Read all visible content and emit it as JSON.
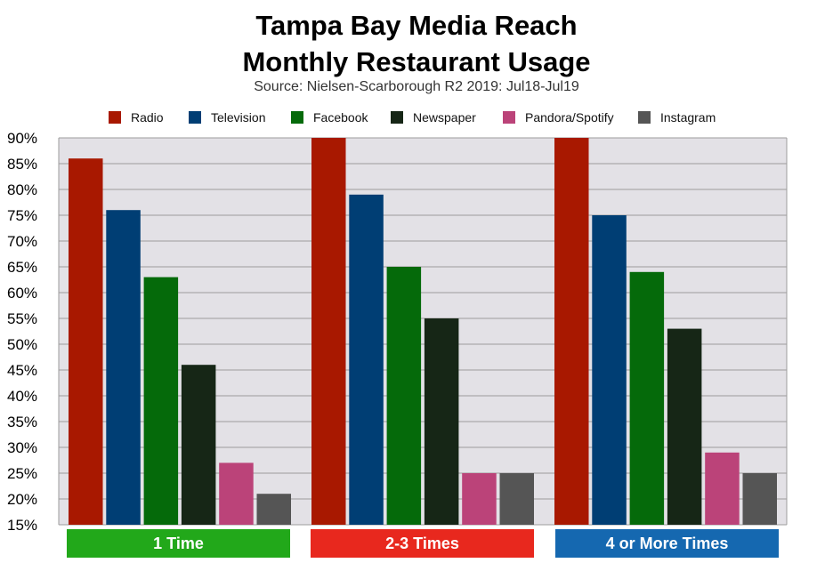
{
  "chart_data": {
    "type": "bar",
    "title_lines": [
      "Tampa Bay Media Reach",
      "Monthly Restaurant Usage"
    ],
    "subtitle": "Source: Nielsen-Scarborough R2 2019: Jul18-Jul19",
    "categories": [
      "1 Time",
      "2-3 Times",
      "4 or More Times"
    ],
    "category_colors": [
      "#22a81a",
      "#e8281e",
      "#1568b0"
    ],
    "series": [
      {
        "name": "Radio",
        "color": "#a81800",
        "values": [
          86,
          90,
          90
        ]
      },
      {
        "name": "Television",
        "color": "#003e74",
        "values": [
          76,
          79,
          75
        ]
      },
      {
        "name": "Facebook",
        "color": "#056a0a",
        "values": [
          63,
          65,
          64
        ]
      },
      {
        "name": "Newspaper",
        "color": "#162616",
        "values": [
          46,
          55,
          53
        ]
      },
      {
        "name": "Pandora/Spotify",
        "color": "#bb4379",
        "values": [
          27,
          25,
          29
        ]
      },
      {
        "name": "Instagram",
        "color": "#555555",
        "values": [
          21,
          25,
          25
        ]
      }
    ],
    "ylim": [
      15,
      90
    ],
    "yticks": [
      "90%",
      "85%",
      "80%",
      "75%",
      "70%",
      "65%",
      "60%",
      "55%",
      "50%",
      "45%",
      "40%",
      "35%",
      "30%",
      "25%",
      "20%",
      "15%"
    ],
    "xlabel": "",
    "ylabel": "",
    "grid": true,
    "legend_position": "top",
    "plot_background": "#e3e1e6"
  }
}
